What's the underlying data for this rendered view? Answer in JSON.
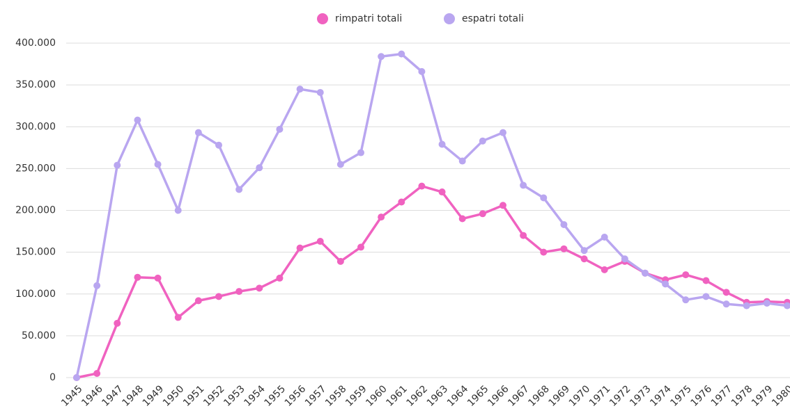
{
  "chart_data": {
    "type": "line",
    "categories": [
      "1945",
      "1946",
      "1947",
      "1948",
      "1949",
      "1950",
      "1951",
      "1952",
      "1953",
      "1954",
      "1955",
      "1956",
      "1957",
      "1958",
      "1959",
      "1960",
      "1961",
      "1962",
      "1963",
      "1964",
      "1965",
      "1966",
      "1967",
      "1968",
      "1969",
      "1970",
      "1971",
      "1972",
      "1973",
      "1974",
      "1975",
      "1976",
      "1977",
      "1978",
      "1979",
      "1980"
    ],
    "series": [
      {
        "name": "rimpatri totali",
        "color": "#f062c0",
        "values": [
          0,
          5000,
          65000,
          120000,
          119000,
          72000,
          92000,
          97000,
          103000,
          107000,
          119000,
          155000,
          163000,
          139000,
          156000,
          192000,
          210000,
          229000,
          222000,
          190000,
          196000,
          206000,
          170000,
          150000,
          154000,
          142000,
          129000,
          139000,
          125000,
          117000,
          123000,
          116000,
          102000,
          90000,
          91000,
          90000
        ]
      },
      {
        "name": "espatri totali",
        "color": "#b9a6f0",
        "values": [
          0,
          110000,
          254000,
          308000,
          255000,
          200000,
          293000,
          278000,
          225000,
          251000,
          297000,
          345000,
          341000,
          255000,
          269000,
          384000,
          387000,
          366000,
          279000,
          259000,
          283000,
          293000,
          230000,
          215000,
          183000,
          152000,
          168000,
          142000,
          125000,
          112000,
          93000,
          97000,
          88000,
          86000,
          89000,
          86000
        ]
      }
    ],
    "ylim": [
      0,
      400000
    ],
    "yticks": [
      0,
      {
        "value": 50000,
        "label": "50.000"
      },
      {
        "value": 100000,
        "label": "100.000"
      },
      {
        "value": 150000,
        "label": "150.000"
      },
      {
        "value": 200000,
        "label": "200.000"
      },
      {
        "value": 250000,
        "label": "250.000"
      },
      {
        "value": 300000,
        "label": "300.000"
      },
      {
        "value": 350000,
        "label": "350.000"
      },
      {
        "value": 400000,
        "label": "400.000"
      }
    ],
    "grid": true,
    "legend": "top"
  }
}
